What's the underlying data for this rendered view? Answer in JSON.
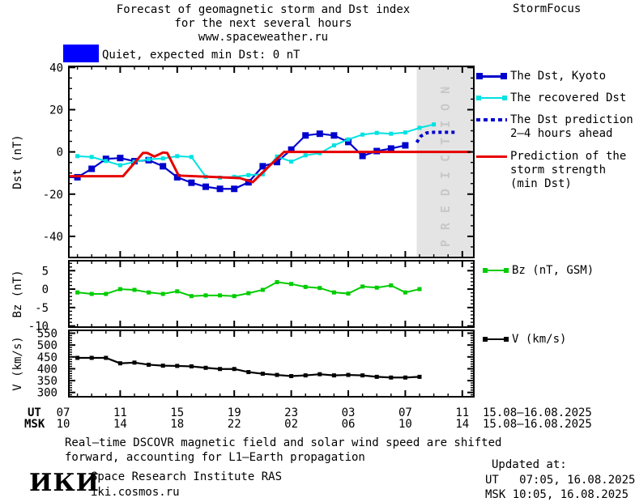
{
  "header": {
    "title_line1": "Forecast of geomagnetic storm and Dst index",
    "title_line2": "for the next several hours",
    "title_line3": "www.spaceweather.ru",
    "brand": "StormFocus"
  },
  "status": {
    "label": "Quiet, expected min Dst: 0 nT"
  },
  "colors": {
    "quiet_box": "#0000ff",
    "kyoto": "#0000cd",
    "recovered": "#00e2e2",
    "prediction": "#0000cd",
    "storm_red": "#e60000",
    "bz_green": "#00cc00",
    "v_black": "#000000",
    "band": "#e4e4e4",
    "band_text": "#c8c8c8",
    "axis": "#000000"
  },
  "legend_main": {
    "kyoto": "The Dst, Kyoto",
    "recovered": "The recovered Dst",
    "prediction_l1": "The Dst prediction",
    "prediction_l2": "2–4 hours ahead",
    "storm_l1": "Prediction of the",
    "storm_l2": "storm strength",
    "storm_l3": "(min Dst)"
  },
  "legend_bz": "Bz (nT, GSM)",
  "legend_v": "V (km/s)",
  "prediction_band": {
    "label": "PREDICTION",
    "start_hour": 24.8,
    "end_hour": 28.4
  },
  "xaxis": {
    "ut_label": "UT",
    "msk_label": "MSK",
    "tick_hours": [
      0,
      4,
      8,
      12,
      16,
      20,
      24,
      28
    ],
    "ut_hours": [
      "07",
      "11",
      "15",
      "19",
      "23",
      "03",
      "07",
      "11"
    ],
    "msk_hours": [
      "10",
      "14",
      "18",
      "22",
      "02",
      "06",
      "10",
      "14"
    ],
    "date_range": "15.08–16.08.2025"
  },
  "chart_data": [
    {
      "type": "line",
      "name": "dst",
      "ylabel": "Dst (nT)",
      "ylim": [
        -50,
        40.5
      ],
      "yticks": [
        40,
        20,
        0,
        -20,
        -40
      ],
      "yminor": 5,
      "series": [
        {
          "name": "The Dst, Kyoto",
          "color": "kyoto",
          "marker": 8,
          "width": 2.2,
          "h": [
            0,
            1,
            2,
            3,
            4,
            5,
            6,
            7,
            8,
            9,
            10,
            11,
            12,
            13,
            14,
            15,
            16,
            17,
            18,
            19,
            20,
            21,
            22,
            23,
            24
          ],
          "v": [
            -12,
            -12,
            -8,
            -3.3,
            -2.9,
            -4.4,
            -3.9,
            -6.8,
            -12,
            -14.6,
            -16.5,
            -17.5,
            -17.5,
            -14.4,
            -6.8,
            -4.8,
            1.1,
            7.8,
            8.6,
            7.8,
            4.7,
            -1.9,
            0.4,
            1.6,
            3.1
          ]
        },
        {
          "name": "The recovered Dst",
          "color": "recovered",
          "marker": 5,
          "width": 2,
          "h": [
            1,
            2,
            3,
            4,
            5,
            6,
            7,
            8,
            9,
            10,
            11,
            12,
            13,
            14,
            15,
            16,
            17,
            18,
            19,
            20,
            21,
            22,
            23,
            24,
            25,
            26
          ],
          "v": [
            -2,
            -2.4,
            -4.3,
            -6.3,
            -4.7,
            -3.5,
            -3.1,
            -2,
            -2.4,
            -11.8,
            -12.2,
            -11.8,
            -11,
            -10.6,
            -2.2,
            -4.6,
            -1.6,
            -0.6,
            3.1,
            5.9,
            8.2,
            9,
            8.6,
            9.2,
            11.4,
            13
          ]
        },
        {
          "name": "The Dst prediction 2–4 hours ahead",
          "color": "prediction",
          "style": "dotted",
          "width": 4,
          "h": [
            24.8,
            25.1,
            25.5,
            26,
            26.5,
            27,
            27.5
          ],
          "v": [
            4.5,
            7.5,
            9,
            9.3,
            9.3,
            9.3,
            9.3
          ]
        },
        {
          "name": "Prediction of the storm strength (min Dst)",
          "color": "storm_red",
          "width": 3,
          "h": [
            0,
            4.2,
            5.6,
            5.9,
            6.4,
            7,
            7.3,
            8.1,
            10.3,
            12.4,
            13.3,
            14.1,
            15.5,
            28.6
          ],
          "v": [
            -11.5,
            -11.5,
            -0.5,
            -0.5,
            -2.2,
            -0.3,
            -0.5,
            -11.2,
            -11.8,
            -12.4,
            -14.3,
            -9,
            0,
            0
          ]
        }
      ]
    },
    {
      "type": "line",
      "name": "bz",
      "ylabel": "Bz (nT)",
      "legend": "Bz (nT, GSM)",
      "ylim": [
        -10.3,
        7.7
      ],
      "yticks": [
        5,
        0,
        -5,
        -10
      ],
      "yminor": 1,
      "series": [
        {
          "name": "Bz (nT, GSM)",
          "color": "bz_green",
          "marker": 5,
          "width": 2,
          "h": [
            1,
            2,
            3,
            4,
            5,
            6,
            7,
            8,
            9,
            10,
            11,
            12,
            13,
            14,
            15,
            16,
            17,
            18,
            19,
            20,
            21,
            22,
            23,
            24,
            25
          ],
          "v": [
            -0.9,
            -1.3,
            -1.3,
            0,
            -0.2,
            -0.9,
            -1.3,
            -0.6,
            -1.9,
            -1.7,
            -1.7,
            -1.9,
            -1.1,
            -0.2,
            1.9,
            1.4,
            0.6,
            0.3,
            -0.9,
            -1.2,
            0.7,
            0.4,
            1,
            -0.9,
            0
          ]
        }
      ]
    },
    {
      "type": "line",
      "name": "v",
      "ylabel": "V (km/s)",
      "legend": "V (km/s)",
      "ylim": [
        282,
        562
      ],
      "yticks": [
        550,
        500,
        450,
        400,
        350,
        300
      ],
      "yminor": 10,
      "series": [
        {
          "name": "V (km/s)",
          "color": "v_black",
          "marker": 5,
          "width": 2.2,
          "h": [
            1,
            2,
            3,
            4,
            5,
            6,
            7,
            8,
            9,
            10,
            11,
            12,
            13,
            14,
            15,
            16,
            17,
            18,
            19,
            20,
            21,
            22,
            23,
            24,
            25
          ],
          "v": [
            446,
            446,
            446,
            423,
            426,
            417,
            413,
            412,
            410,
            404,
            399,
            399,
            386,
            379,
            374,
            369,
            372,
            377,
            372,
            374,
            372,
            366,
            363,
            363,
            366
          ]
        }
      ]
    }
  ],
  "footer": {
    "note_line1": "Real–time DSCOVR magnetic field and solar wind speed are shifted",
    "note_line2": "forward, accounting for L1–Earth propagation",
    "logo": "ИКИ",
    "institute": "Space Research Institute RAS",
    "website": "iki.cosmos.ru",
    "updated_label": "Updated at:",
    "updated_ut": "UT   07:05, 16.08.2025",
    "updated_msk": "MSK 10:05, 16.08.2025"
  }
}
